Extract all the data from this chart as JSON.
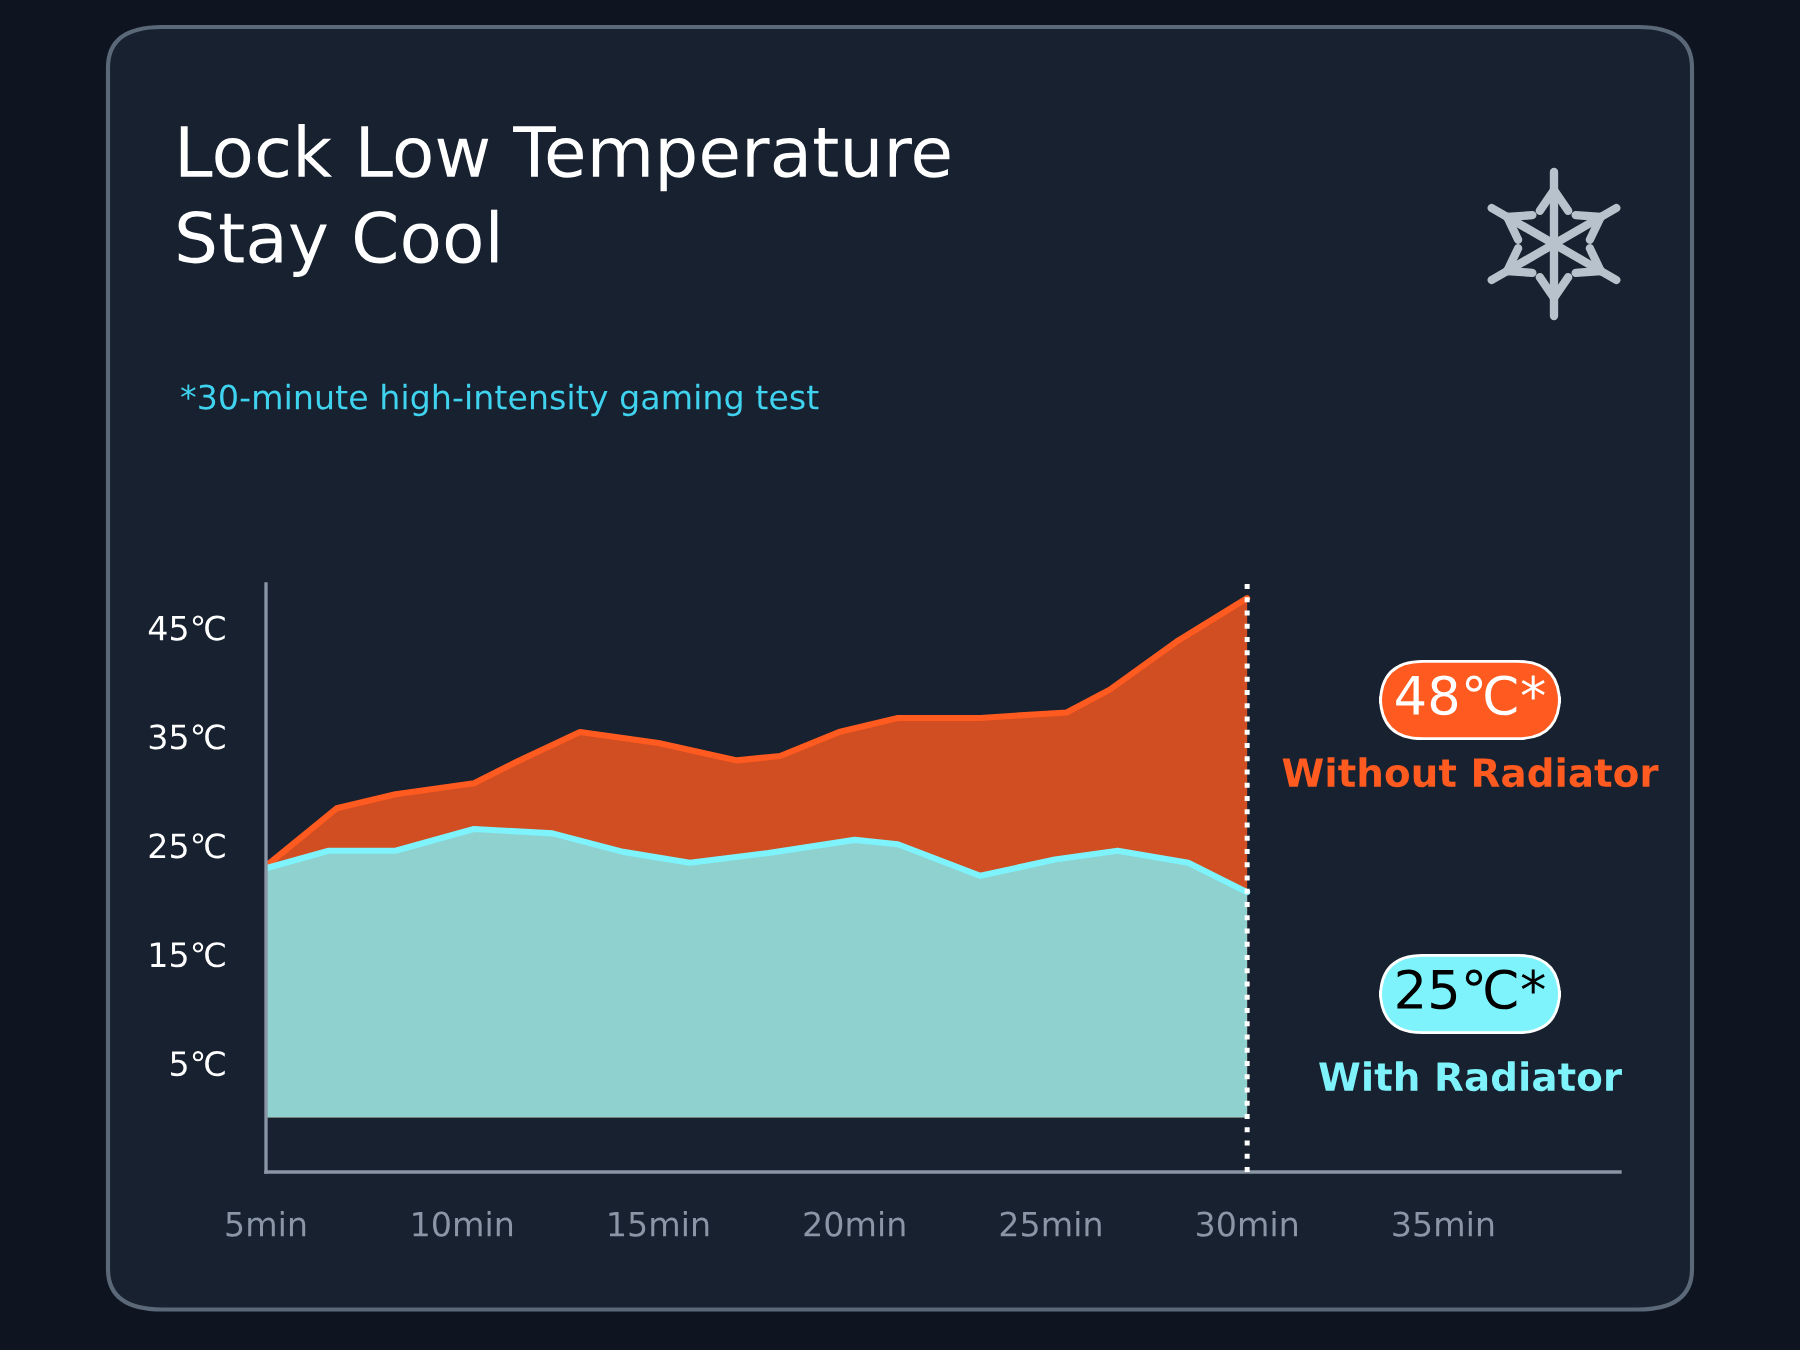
{
  "chart_data": {
    "type": "area",
    "title": "Lock Low Temperature\nStay Cool",
    "subtitle": "*30-minute high-intensity gaming test",
    "annotations": [
      "48℃*",
      "25℃*"
    ],
    "series": [
      {
        "name": "Without Radiator",
        "color": "#ff5a1f",
        "x": [
          5,
          6.8,
          8.3,
          10.3,
          11.4,
          13.0,
          15.0,
          17.0,
          18.1,
          19.6,
          21.1,
          23.2,
          25.4,
          26.5,
          28.2,
          30
        ],
        "values": [
          23.1,
          28.4,
          29.7,
          30.7,
          32.7,
          35.4,
          34.4,
          32.8,
          33.2,
          35.4,
          36.7,
          36.7,
          37.2,
          39.3,
          43.7,
          47.7
        ]
      },
      {
        "name": "With Radiator",
        "color": "#7ef3fb",
        "x": [
          5,
          6.6,
          8.3,
          10.3,
          12.3,
          14.1,
          15.8,
          17.8,
          20.0,
          21.1,
          23.2,
          25.1,
          26.7,
          28.5,
          30
        ],
        "values": [
          22.9,
          24.5,
          24.5,
          26.5,
          26.1,
          24.4,
          23.4,
          24.3,
          25.5,
          25.1,
          22.2,
          23.7,
          24.5,
          23.4,
          20.7
        ]
      }
    ],
    "xlim": [
      5,
      39.5
    ],
    "xticks": [
      {
        "value": 5,
        "label": "5min"
      },
      {
        "value": 10,
        "label": "10min"
      },
      {
        "value": 15,
        "label": "15min"
      },
      {
        "value": 20,
        "label": "20min"
      },
      {
        "value": 25,
        "label": "25min"
      },
      {
        "value": 30,
        "label": "30min"
      },
      {
        "value": 35,
        "label": "35min"
      }
    ],
    "ylim": [
      -5,
      49
    ],
    "yticks": [
      {
        "value": 5,
        "label": "5℃"
      },
      {
        "value": 15,
        "label": "15℃"
      },
      {
        "value": 25,
        "label": "25℃"
      },
      {
        "value": 35,
        "label": "35℃"
      },
      {
        "value": 45,
        "label": "45℃"
      }
    ],
    "ref_lines": [
      {
        "axis": "x",
        "value": 30,
        "color": "#ffffff",
        "line_style": "dotted"
      }
    ],
    "grid": false,
    "legend": "right"
  }
}
